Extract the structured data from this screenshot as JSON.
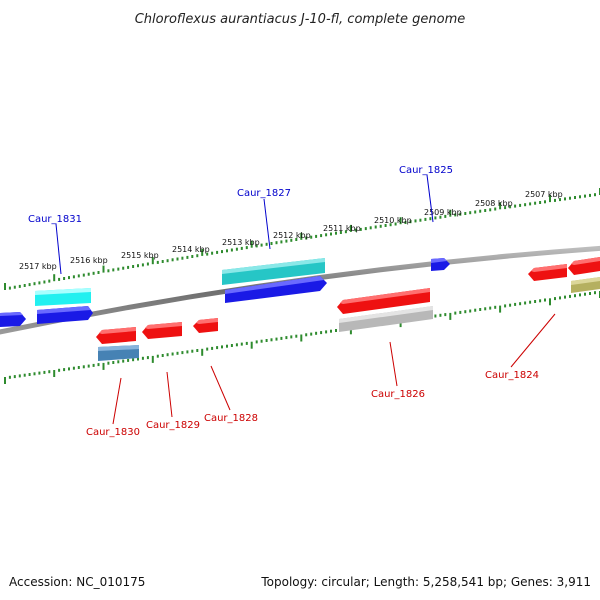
{
  "title": "Chloroflexus aurantiacus J-10-fl, complete genome",
  "footer": {
    "accession": "Accession: NC_010175",
    "topology": "Topology: circular; Length: 5,258,541 bp; Genes: 3,911"
  },
  "colors": {
    "backbone": "#7a7a7a",
    "ruler": "#2e8b2e",
    "forward_label": "#0000cc",
    "reverse_label": "#cc0000",
    "blue": "#1a1ae6",
    "cyan": "#22e0e0",
    "teal": "#26c6c6",
    "red": "#ee1111",
    "grey": "#b8b8b8",
    "steel": "#4682b4",
    "olive": "#b5b060"
  },
  "ruler_labels": [
    "2517 kbp",
    "2516 kbp",
    "2515 kbp",
    "2514 kbp",
    "2513 kbp",
    "2512 kbp",
    "2511 kbp",
    "2510 kbp",
    "2509 kbp",
    "2508 kbp",
    "2507 kbp"
  ],
  "genes": {
    "forward": [
      "Caur_1831",
      "Caur_1827",
      "Caur_1825"
    ],
    "reverse": [
      "Caur_1830",
      "Caur_1829",
      "Caur_1828",
      "Caur_1826",
      "Caur_1824"
    ]
  }
}
